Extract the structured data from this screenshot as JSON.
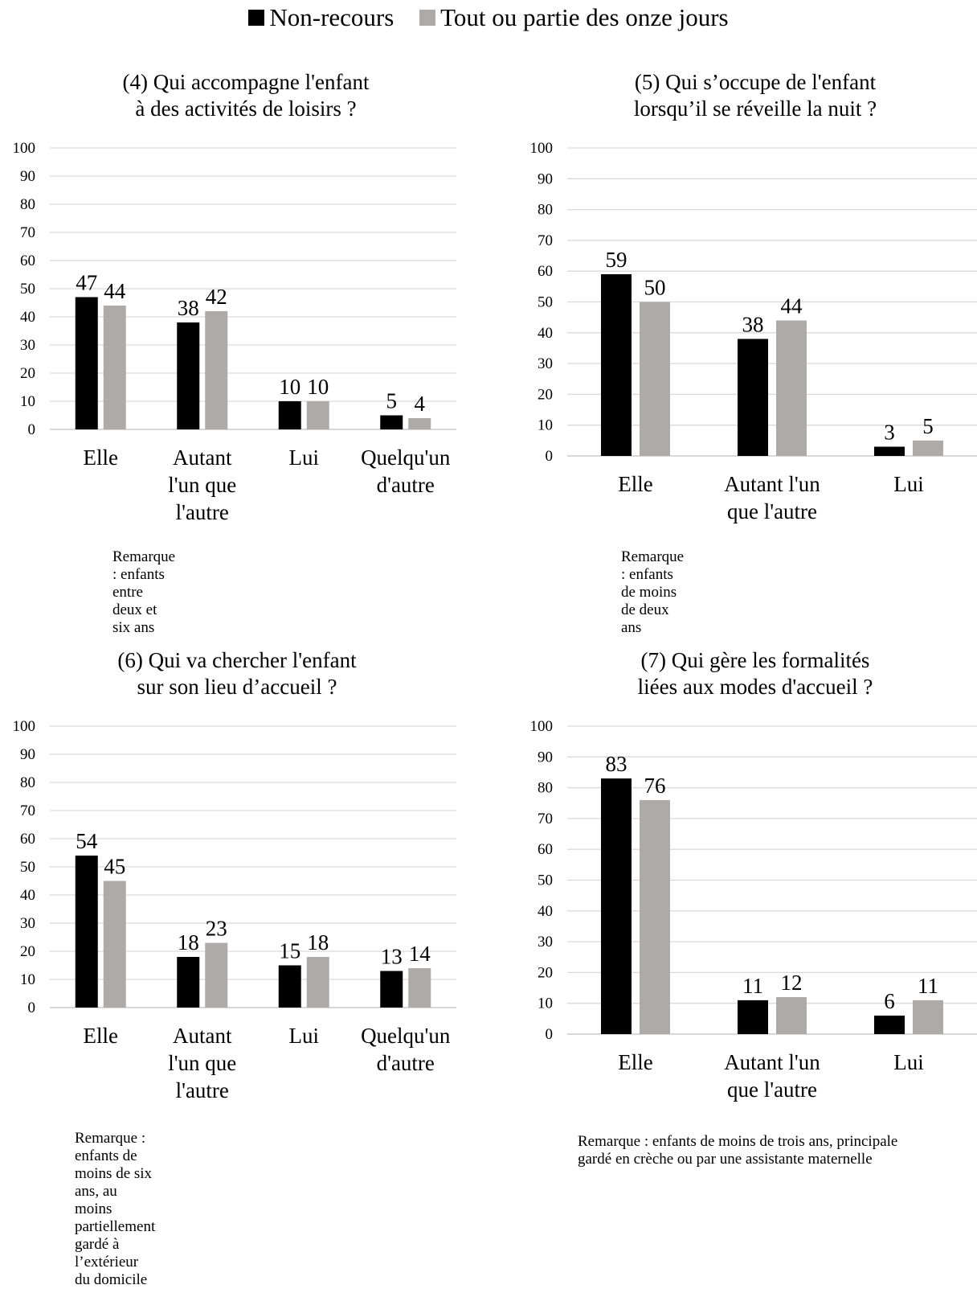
{
  "legend": {
    "items": [
      {
        "label": "Non-recours",
        "color": "#000000"
      },
      {
        "label": "Tout ou partie des onze jours",
        "color": "#aeaaaa"
      }
    ]
  },
  "chart_data": [
    {
      "type": "bar",
      "title": "(4) Qui accompagne l'enfant\nà des activités de loisirs ?",
      "categories": [
        "Elle",
        "Autant l'un que l'autre",
        "Lui",
        "Quelqu'un d'autre"
      ],
      "category_lines": [
        [
          "Elle"
        ],
        [
          "Autant",
          "l'un que",
          "l'autre"
        ],
        [
          "Lui"
        ],
        [
          "Quelqu'un",
          "d'autre"
        ]
      ],
      "series": [
        {
          "name": "Non-recours",
          "values": [
            47,
            38,
            10,
            5
          ]
        },
        {
          "name": "Tout ou partie des onze jours",
          "values": [
            44,
            42,
            10,
            4
          ]
        }
      ],
      "ylim": [
        0,
        100
      ],
      "yticks": [
        0,
        10,
        20,
        30,
        40,
        50,
        60,
        70,
        80,
        90,
        100
      ],
      "grid": true,
      "note": "Remarque : enfants entre deux et six ans"
    },
    {
      "type": "bar",
      "title": "(5) Qui s’occupe de l'enfant\nlorsqu’il se réveille la nuit ?",
      "categories": [
        "Elle",
        "Autant l'un que l'autre",
        "Lui"
      ],
      "category_lines": [
        [
          "Elle"
        ],
        [
          "Autant l'un",
          "que l'autre"
        ],
        [
          "Lui"
        ]
      ],
      "series": [
        {
          "name": "Non-recours",
          "values": [
            59,
            38,
            3
          ]
        },
        {
          "name": "Tout ou partie des onze jours",
          "values": [
            50,
            44,
            5
          ]
        }
      ],
      "ylim": [
        0,
        100
      ],
      "yticks": [
        0,
        10,
        20,
        30,
        40,
        50,
        60,
        70,
        80,
        90,
        100
      ],
      "grid": true,
      "note": "Remarque : enfants de moins de deux ans"
    },
    {
      "type": "bar",
      "title": "(6) Qui va chercher l'enfant\nsur son lieu d’accueil ?",
      "categories": [
        "Elle",
        "Autant l'un que l'autre",
        "Lui",
        "Quelqu'un d'autre"
      ],
      "category_lines": [
        [
          "Elle"
        ],
        [
          "Autant",
          "l'un que",
          "l'autre"
        ],
        [
          "Lui"
        ],
        [
          "Quelqu'un",
          "d'autre"
        ]
      ],
      "series": [
        {
          "name": "Non-recours",
          "values": [
            54,
            18,
            15,
            13
          ]
        },
        {
          "name": "Tout ou partie des onze jours",
          "values": [
            45,
            23,
            18,
            14
          ]
        }
      ],
      "ylim": [
        0,
        100
      ],
      "yticks": [
        0,
        10,
        20,
        30,
        40,
        50,
        60,
        70,
        80,
        90,
        100
      ],
      "grid": true,
      "note": "Remarque : enfants de moins de six ans, au moins\npartiellement gardé à l’extérieur du domicile"
    },
    {
      "type": "bar",
      "title": "(7) Qui gère les formalités\nliées aux modes d'accueil ?",
      "categories": [
        "Elle",
        "Autant l'un que l'autre",
        "Lui"
      ],
      "category_lines": [
        [
          "Elle"
        ],
        [
          "Autant l'un",
          "que l'autre"
        ],
        [
          "Lui"
        ]
      ],
      "series": [
        {
          "name": "Non-recours",
          "values": [
            83,
            11,
            6
          ]
        },
        {
          "name": "Tout ou partie des onze jours",
          "values": [
            76,
            12,
            11
          ]
        }
      ],
      "ylim": [
        0,
        100
      ],
      "yticks": [
        0,
        10,
        20,
        30,
        40,
        50,
        60,
        70,
        80,
        90,
        100
      ],
      "grid": true,
      "note": "Remarque : enfants de moins de trois ans, principale\ngardé en crèche ou par une assistante maternelle"
    }
  ]
}
